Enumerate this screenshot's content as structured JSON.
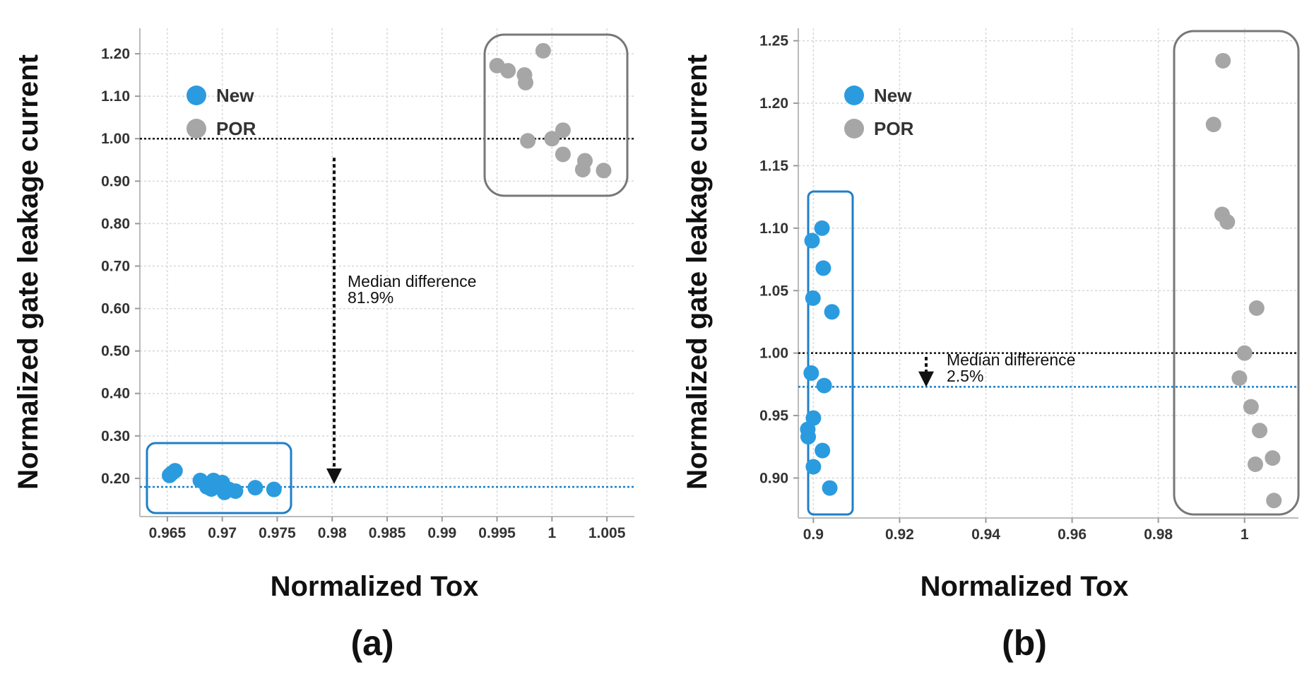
{
  "colors": {
    "new": "#2b9be0",
    "por": "#a6a6a6",
    "reference": "#111111",
    "new_median": "#1a7fc4",
    "box_new": "#1f7fc8",
    "box_por": "#777777",
    "grid": "#d8d8d8"
  },
  "chart_data": [
    {
      "type": "scatter",
      "panel_label": "(a)",
      "xlabel": "Normalized Tox",
      "ylabel": "Normalized gate leakage current",
      "xlim": [
        0.9625,
        1.0075
      ],
      "ylim": [
        0.11,
        1.26
      ],
      "x_ticks": [
        0.965,
        0.97,
        0.975,
        0.98,
        0.985,
        0.99,
        0.995,
        1.0,
        1.005
      ],
      "x_tick_labels": [
        "0.965",
        "0.97",
        "0.975",
        "0.98",
        "0.985",
        "0.99",
        "0.995",
        "1",
        "1.005"
      ],
      "y_ticks": [
        0.2,
        0.3,
        0.4,
        0.5,
        0.6,
        0.7,
        0.8,
        0.9,
        1.0,
        1.1,
        1.2
      ],
      "y_tick_labels": [
        "0.20",
        "0.30",
        "0.40",
        "0.50",
        "0.60",
        "0.70",
        "0.80",
        "0.90",
        "1.00",
        "1.10",
        "1.20"
      ],
      "grid": true,
      "legend": [
        "New",
        "POR"
      ],
      "legend_position": "top-left",
      "series": [
        {
          "name": "New",
          "points": [
            [
              0.9652,
              0.207
            ],
            [
              0.9654,
              0.212
            ],
            [
              0.9657,
              0.218
            ],
            [
              0.968,
              0.195
            ],
            [
              0.9686,
              0.18
            ],
            [
              0.969,
              0.175
            ],
            [
              0.9692,
              0.195
            ],
            [
              0.9697,
              0.185
            ],
            [
              0.97,
              0.19
            ],
            [
              0.9702,
              0.167
            ],
            [
              0.9706,
              0.174
            ],
            [
              0.9712,
              0.17
            ],
            [
              0.973,
              0.178
            ],
            [
              0.9747,
              0.174
            ]
          ]
        },
        {
          "name": "POR",
          "points": [
            [
              0.995,
              1.172
            ],
            [
              0.996,
              1.16
            ],
            [
              0.9975,
              1.15
            ],
            [
              0.9976,
              1.132
            ],
            [
              0.9992,
              1.207
            ],
            [
              0.9978,
              0.995
            ],
            [
              1.0,
              1.0
            ],
            [
              1.001,
              1.02
            ],
            [
              1.001,
              0.963
            ],
            [
              1.003,
              0.948
            ],
            [
              1.0028,
              0.927
            ],
            [
              1.0047,
              0.925
            ]
          ]
        }
      ],
      "reference_lines": [
        1.0,
        0.18
      ],
      "annotation": {
        "line1": "Median difference",
        "line2": "81.9%",
        "arrow_from": 0.955,
        "arrow_to": 0.19
      }
    },
    {
      "type": "scatter",
      "panel_label": "(b)",
      "xlabel": "Normalized Tox",
      "ylabel": "Normalized gate leakage current",
      "xlim": [
        0.8965,
        1.0125
      ],
      "ylim": [
        0.868,
        1.26
      ],
      "x_ticks": [
        0.9,
        0.92,
        0.94,
        0.96,
        0.98,
        1.0
      ],
      "x_tick_labels": [
        "0.9",
        "0.92",
        "0.94",
        "0.96",
        "0.98",
        "1"
      ],
      "y_ticks": [
        0.9,
        0.95,
        1.0,
        1.05,
        1.1,
        1.15,
        1.2,
        1.25
      ],
      "y_tick_labels": [
        "0.90",
        "0.95",
        "1.00",
        "1.05",
        "1.10",
        "1.15",
        "1.20",
        "1.25"
      ],
      "grid": true,
      "legend": [
        "New",
        "POR"
      ],
      "legend_position": "top-left",
      "series": [
        {
          "name": "New",
          "points": [
            [
              0.902,
              1.1
            ],
            [
              0.8997,
              1.09
            ],
            [
              0.9023,
              1.068
            ],
            [
              0.8999,
              1.044
            ],
            [
              0.9043,
              1.033
            ],
            [
              0.8995,
              0.984
            ],
            [
              0.9025,
              0.974
            ],
            [
              0.9,
              0.948
            ],
            [
              0.8987,
              0.939
            ],
            [
              0.8988,
              0.933
            ],
            [
              0.9021,
              0.922
            ],
            [
              0.9,
              0.909
            ],
            [
              0.9038,
              0.892
            ]
          ]
        },
        {
          "name": "POR",
          "points": [
            [
              0.995,
              1.234
            ],
            [
              0.9928,
              1.183
            ],
            [
              0.9948,
              1.111
            ],
            [
              0.996,
              1.105
            ],
            [
              1.0028,
              1.036
            ],
            [
              1.0,
              1.0
            ],
            [
              0.9988,
              0.98
            ],
            [
              1.0015,
              0.957
            ],
            [
              1.0035,
              0.938
            ],
            [
              1.0025,
              0.911
            ],
            [
              1.0065,
              0.916
            ],
            [
              1.0068,
              0.882
            ]
          ]
        }
      ],
      "reference_lines": [
        1.0,
        0.973
      ],
      "annotation": {
        "line1": "Median difference",
        "line2": "2.5%",
        "arrow_from": 0.997,
        "arrow_to": 0.974
      }
    }
  ]
}
